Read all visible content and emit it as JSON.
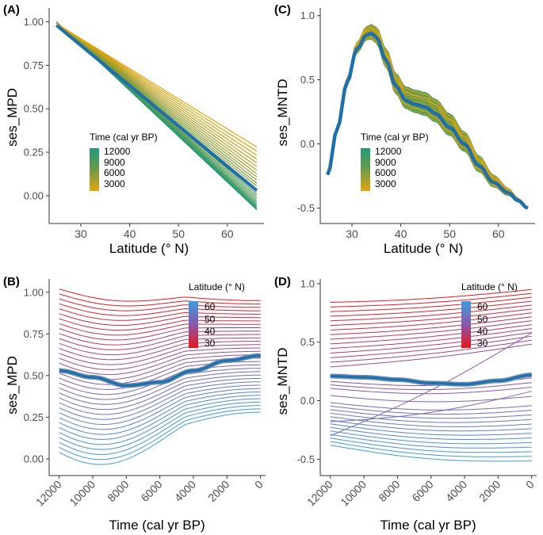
{
  "figure": {
    "colors": {
      "axis": "#333333",
      "tick_label": "#4d4d4d",
      "mean_line": "#1f6fa8",
      "mean_halo": "#6a8fb8",
      "time_old": "#1e9a78",
      "time_mid": "#6e9b48",
      "time_young": "#e4a50c",
      "lat_high": "#3b9ee0",
      "lat_mid": "#8c56a8",
      "lat_low": "#e8161c"
    }
  },
  "chart_data": [
    {
      "id": "A",
      "type": "line",
      "panel_label": "(A)",
      "xlabel": "Latitude (° N)",
      "ylabel": "ses_MPD",
      "xlim": [
        23.5,
        67.5
      ],
      "ylim": [
        -0.16,
        1.08
      ],
      "xticks": [
        30,
        40,
        50,
        60
      ],
      "yticks": [
        0,
        0.25,
        0.5,
        0.75,
        1.0
      ],
      "ytick_labels": [
        "0.00",
        "0.25",
        "0.50",
        "0.75",
        "1.00"
      ],
      "x_range": [
        25,
        66
      ],
      "series_description": "One regression line per 500-yr time slice (12000 to 0 cal yr BP), linear in latitude",
      "start_value_young": 0.99,
      "end_value_young": 0.28,
      "start_value_old": 1.0,
      "end_value_old": -0.08,
      "mean_line": {
        "x": [
          25,
          66
        ],
        "y": [
          0.98,
          0.03
        ]
      },
      "legend": {
        "title": "Time (cal yr BP)",
        "labels": [
          "12000",
          "9000",
          "6000",
          "3000"
        ],
        "placement": "center-left"
      }
    },
    {
      "id": "C",
      "type": "line",
      "panel_label": "(C)",
      "xlabel": "Latitude (° N)",
      "ylabel": "ses_MNTD",
      "xlim": [
        23.5,
        67.5
      ],
      "ylim": [
        -0.62,
        1.06
      ],
      "xticks": [
        30,
        40,
        50,
        60
      ],
      "yticks": [
        -0.5,
        0,
        0.5,
        1.0
      ],
      "ytick_labels": [
        "-0.5",
        "0.0",
        "0.5",
        "1.0"
      ],
      "mean_line": {
        "x": [
          25,
          27,
          29,
          31,
          33,
          34,
          35,
          37,
          39,
          41,
          43,
          45,
          47,
          50,
          53,
          56,
          59,
          62,
          64,
          66
        ],
        "y": [
          -0.24,
          0.12,
          0.48,
          0.74,
          0.85,
          0.86,
          0.83,
          0.65,
          0.45,
          0.34,
          0.31,
          0.29,
          0.24,
          0.13,
          0.0,
          -0.17,
          -0.3,
          -0.38,
          -0.44,
          -0.5
        ]
      },
      "band": {
        "upper_offset": 0.1,
        "lower_offset": 0.06
      },
      "legend": {
        "title": "Time (cal yr BP)",
        "labels": [
          "12000",
          "9000",
          "6000",
          "3000"
        ],
        "placement": "center-left"
      }
    },
    {
      "id": "B",
      "type": "line",
      "panel_label": "(B)",
      "xlabel": "Time (cal yr BP)",
      "ylabel": "ses_MPD",
      "xlim": [
        12600,
        -300
      ],
      "ylim": [
        -0.1,
        1.08
      ],
      "xticks": [
        12000,
        10000,
        8000,
        6000,
        4000,
        2000,
        0
      ],
      "yticks": [
        0,
        0.25,
        0.5,
        0.75,
        1.0
      ],
      "ytick_labels": [
        "0.00",
        "0.25",
        "0.50",
        "0.75",
        "1.00"
      ],
      "series_description": "One line per latitude band (25–66 ° N), ses_MPD through time",
      "start_value_low_lat": 1.02,
      "start_value_high_lat": 0.04,
      "end_value_low_lat": 0.95,
      "end_value_high_lat": 0.28,
      "mean_line": {
        "x": [
          12000,
          10000,
          8000,
          6000,
          4000,
          2000,
          0
        ],
        "y": [
          0.53,
          0.49,
          0.44,
          0.46,
          0.53,
          0.59,
          0.62
        ]
      },
      "legend": {
        "title": "Latitude (° N)",
        "labels": [
          "60",
          "50",
          "40",
          "30"
        ],
        "placement": "top-right"
      }
    },
    {
      "id": "D",
      "type": "line",
      "panel_label": "(D)",
      "xlabel": "Time (cal yr BP)",
      "ylabel": "ses_MNTD",
      "xlim": [
        12600,
        -300
      ],
      "ylim": [
        -0.64,
        1.04
      ],
      "xticks": [
        12000,
        10000,
        8000,
        6000,
        4000,
        2000,
        0
      ],
      "yticks": [
        -0.5,
        0,
        0.5,
        1.0
      ],
      "ytick_labels": [
        "-0.5",
        "0.0",
        "0.5",
        "1.0"
      ],
      "series_description": "One line per latitude band (25–66 ° N), ses_MNTD through time",
      "mean_line": {
        "x": [
          12000,
          10000,
          8000,
          6000,
          4000,
          2000,
          0
        ],
        "y": [
          0.21,
          0.2,
          0.18,
          0.15,
          0.14,
          0.17,
          0.22
        ]
      },
      "legend": {
        "title": "Latitude (° N)",
        "labels": [
          "60",
          "50",
          "40",
          "30"
        ],
        "placement": "top-right"
      }
    }
  ]
}
